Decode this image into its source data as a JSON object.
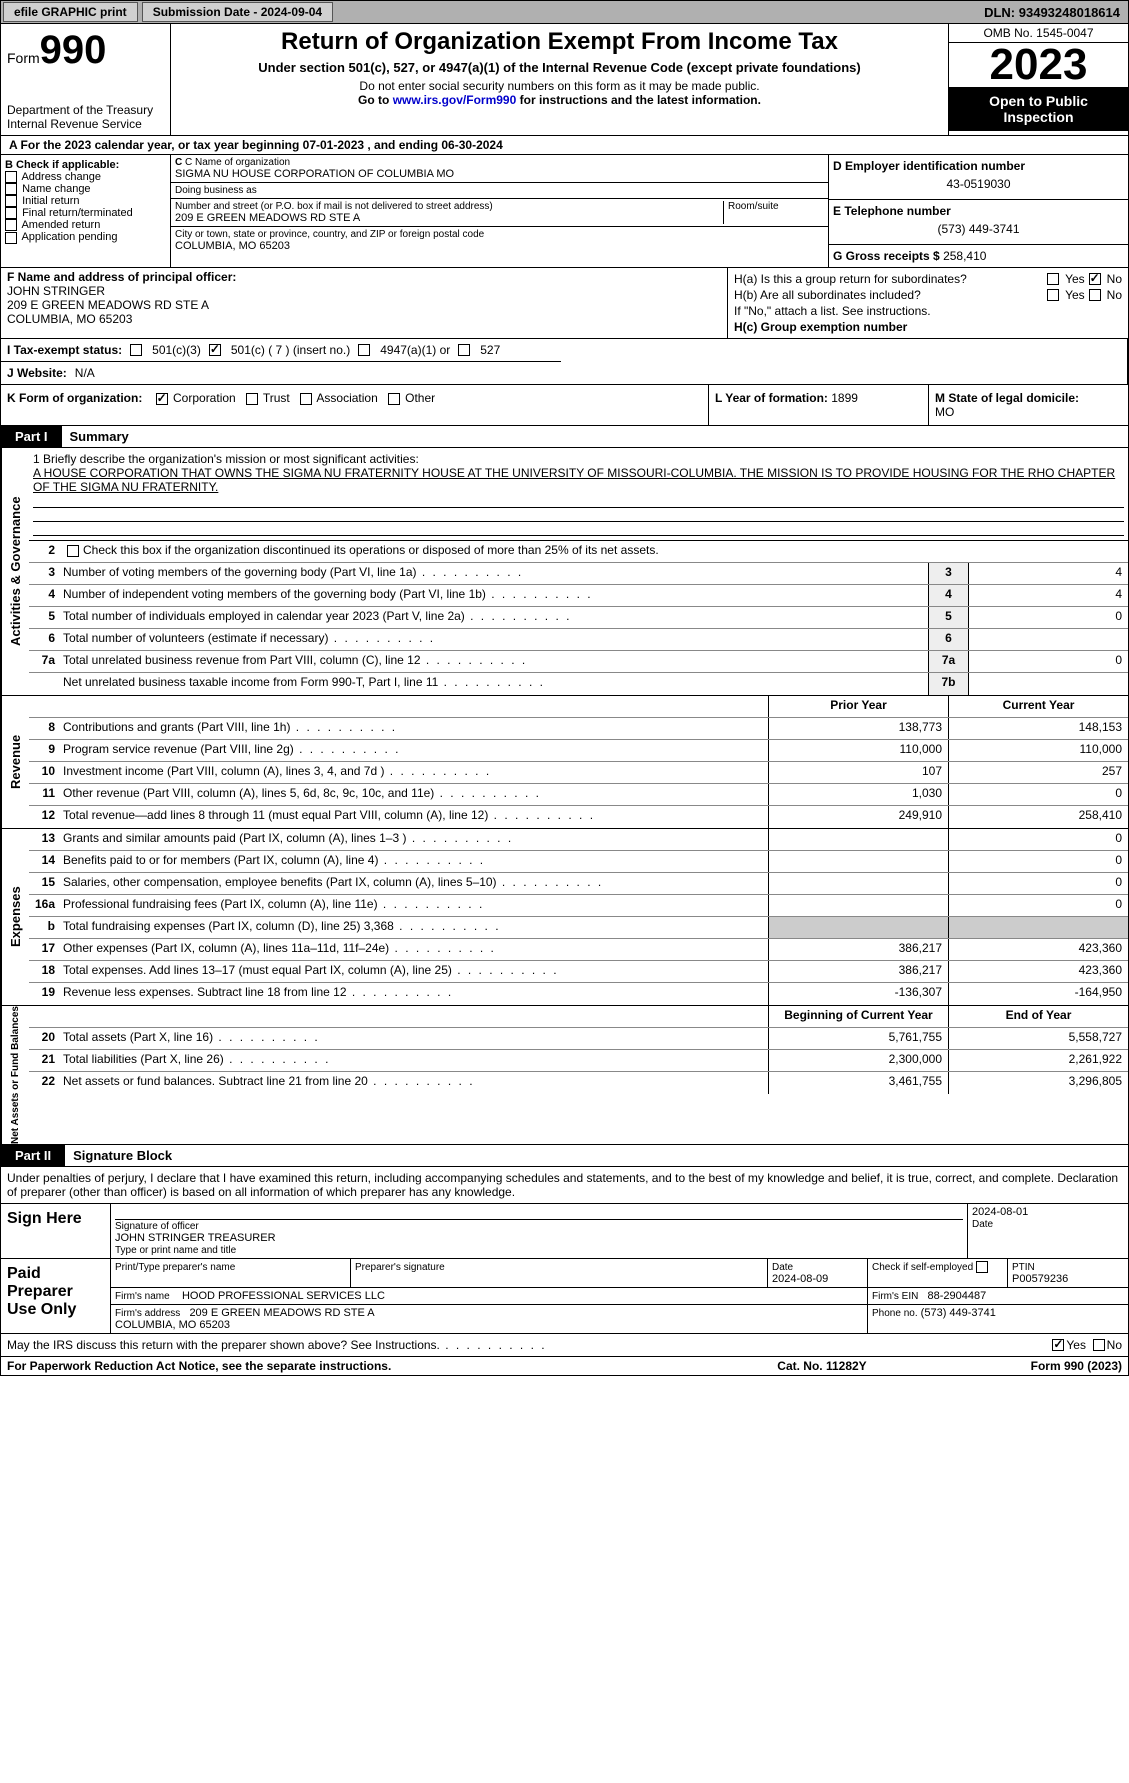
{
  "topbar": {
    "efile": "efile GRAPHIC print",
    "submission_label": "Submission Date - ",
    "submission_date": "2024-09-04",
    "dln_label": "DLN: ",
    "dln": "93493248018614"
  },
  "header": {
    "form_word": "Form",
    "form_num": "990",
    "dept": "Department of the Treasury\nInternal Revenue Service",
    "title": "Return of Organization Exempt From Income Tax",
    "subtitle": "Under section 501(c), 527, or 4947(a)(1) of the Internal Revenue Code (except private foundations)",
    "note1": "Do not enter social security numbers on this form as it may be made public.",
    "note2_pre": "Go to ",
    "note2_link": "www.irs.gov/Form990",
    "note2_post": " for instructions and the latest information.",
    "omb": "OMB No. 1545-0047",
    "year": "2023",
    "open": "Open to Public Inspection"
  },
  "section_a": {
    "text": "A   For the 2023 calendar year, or tax year beginning 07-01-2023    , and ending 06-30-2024"
  },
  "section_b": {
    "label": "B Check if applicable:",
    "opts": [
      "Address change",
      "Name change",
      "Initial return",
      "Final return/terminated",
      "Amended return",
      "Application pending"
    ]
  },
  "section_c": {
    "name_label": "C Name of organization",
    "name": "SIGMA NU HOUSE CORPORATION OF COLUMBIA MO",
    "dba_label": "Doing business as",
    "dba": "",
    "street_label": "Number and street (or P.O. box if mail is not delivered to street address)",
    "room_label": "Room/suite",
    "street": "209 E GREEN MEADOWS RD STE A",
    "city_label": "City or town, state or province, country, and ZIP or foreign postal code",
    "city": "COLUMBIA, MO  65203"
  },
  "section_d": {
    "label": "D Employer identification number",
    "value": "43-0519030"
  },
  "section_e": {
    "label": "E Telephone number",
    "value": "(573) 449-3741"
  },
  "section_g": {
    "label": "G Gross receipts $",
    "value": "258,410"
  },
  "section_f": {
    "label": "F  Name and address of principal officer:",
    "name": "JOHN STRINGER",
    "addr1": "209 E GREEN MEADOWS RD STE A",
    "addr2": "COLUMBIA, MO  65203"
  },
  "section_h": {
    "a_label": "H(a)  Is this a group return for subordinates?",
    "a_yes": "Yes",
    "a_no": "No",
    "a_checked": "no",
    "b_label": "H(b)  Are all subordinates included?",
    "b_yes": "Yes",
    "b_no": "No",
    "b_note": "If \"No,\" attach a list. See instructions.",
    "c_label": "H(c)  Group exemption number"
  },
  "section_i": {
    "label": "I    Tax-exempt status:",
    "o1": "501(c)(3)",
    "o2": "501(c) ( 7 ) (insert no.)",
    "o3": "4947(a)(1) or",
    "o4": "527",
    "checked": "o2"
  },
  "section_j": {
    "label": "J    Website:",
    "value": "N/A"
  },
  "section_k": {
    "label": "K Form of organization:",
    "opts": [
      "Corporation",
      "Trust",
      "Association",
      "Other"
    ],
    "checked": 0
  },
  "section_l": {
    "label": "L Year of formation: ",
    "value": "1899"
  },
  "section_m": {
    "label": "M State of legal domicile:",
    "value": "MO"
  },
  "part1": {
    "num": "Part I",
    "title": "Summary"
  },
  "mission": {
    "label": "1   Briefly describe the organization's mission or most significant activities:",
    "text": "A HOUSE CORPORATION THAT OWNS THE SIGMA NU FRATERNITY HOUSE AT THE UNIVERSITY OF MISSOURI-COLUMBIA. THE MISSION IS TO PROVIDE HOUSING FOR THE RHO CHAPTER OF THE SIGMA NU FRATERNITY."
  },
  "gov_lines": {
    "l2": "Check this box        if the organization discontinued its operations or disposed of more than 25% of its net assets.",
    "l3": {
      "desc": "Number of voting members of the governing body (Part VI, line 1a)",
      "box": "3",
      "val": "4"
    },
    "l4": {
      "desc": "Number of independent voting members of the governing body (Part VI, line 1b)",
      "box": "4",
      "val": "4"
    },
    "l5": {
      "desc": "Total number of individuals employed in calendar year 2023 (Part V, line 2a)",
      "box": "5",
      "val": "0"
    },
    "l6": {
      "desc": "Total number of volunteers (estimate if necessary)",
      "box": "6",
      "val": ""
    },
    "l7a": {
      "desc": "Total unrelated business revenue from Part VIII, column (C), line 12",
      "box": "7a",
      "val": "0"
    },
    "l7b": {
      "desc": "Net unrelated business taxable income from Form 990-T, Part I, line 11",
      "box": "7b",
      "val": ""
    }
  },
  "col_headers": {
    "py": "Prior Year",
    "cy": "Current Year"
  },
  "revenue": {
    "side": "Revenue",
    "lines": [
      {
        "n": "8",
        "d": "Contributions and grants (Part VIII, line 1h)",
        "py": "138,773",
        "cy": "148,153"
      },
      {
        "n": "9",
        "d": "Program service revenue (Part VIII, line 2g)",
        "py": "110,000",
        "cy": "110,000"
      },
      {
        "n": "10",
        "d": "Investment income (Part VIII, column (A), lines 3, 4, and 7d )",
        "py": "107",
        "cy": "257"
      },
      {
        "n": "11",
        "d": "Other revenue (Part VIII, column (A), lines 5, 6d, 8c, 9c, 10c, and 11e)",
        "py": "1,030",
        "cy": "0"
      },
      {
        "n": "12",
        "d": "Total revenue—add lines 8 through 11 (must equal Part VIII, column (A), line 12)",
        "py": "249,910",
        "cy": "258,410"
      }
    ]
  },
  "expenses": {
    "side": "Expenses",
    "lines": [
      {
        "n": "13",
        "d": "Grants and similar amounts paid (Part IX, column (A), lines 1–3 )",
        "py": "",
        "cy": "0"
      },
      {
        "n": "14",
        "d": "Benefits paid to or for members (Part IX, column (A), line 4)",
        "py": "",
        "cy": "0"
      },
      {
        "n": "15",
        "d": "Salaries, other compensation, employee benefits (Part IX, column (A), lines 5–10)",
        "py": "",
        "cy": "0"
      },
      {
        "n": "16a",
        "d": "Professional fundraising fees (Part IX, column (A), line 11e)",
        "py": "",
        "cy": "0"
      },
      {
        "n": "b",
        "d": "Total fundraising expenses (Part IX, column (D), line 25) 3,368",
        "py": "SHADE",
        "cy": "SHADE"
      },
      {
        "n": "17",
        "d": "Other expenses (Part IX, column (A), lines 11a–11d, 11f–24e)",
        "py": "386,217",
        "cy": "423,360"
      },
      {
        "n": "18",
        "d": "Total expenses. Add lines 13–17 (must equal Part IX, column (A), line 25)",
        "py": "386,217",
        "cy": "423,360"
      },
      {
        "n": "19",
        "d": "Revenue less expenses. Subtract line 18 from line 12",
        "py": "-136,307",
        "cy": "-164,950"
      }
    ]
  },
  "netassets": {
    "side": "Net Assets or Fund Balances",
    "header": {
      "py": "Beginning of Current Year",
      "cy": "End of Year"
    },
    "lines": [
      {
        "n": "20",
        "d": "Total assets (Part X, line 16)",
        "py": "5,761,755",
        "cy": "5,558,727"
      },
      {
        "n": "21",
        "d": "Total liabilities (Part X, line 26)",
        "py": "2,300,000",
        "cy": "2,261,922"
      },
      {
        "n": "22",
        "d": "Net assets or fund balances. Subtract line 21 from line 20",
        "py": "3,461,755",
        "cy": "3,296,805"
      }
    ]
  },
  "gov_side": "Activities & Governance",
  "part2": {
    "num": "Part II",
    "title": "Signature Block"
  },
  "sig": {
    "intro": "Under penalties of perjury, I declare that I have examined this return, including accompanying schedules and statements, and to the best of my knowledge and belief, it is true, correct, and complete. Declaration of preparer (other than officer) is based on all information of which preparer has any knowledge.",
    "sign_here": "Sign Here",
    "sig_officer": "Signature of officer",
    "officer_name": "JOHN STRINGER  TREASURER",
    "type_name": "Type or print name and title",
    "date1": "2024-08-01",
    "date_label": "Date",
    "paid": "Paid Preparer Use Only",
    "prep_name_label": "Print/Type preparer's name",
    "prep_sig_label": "Preparer's signature",
    "date2_label": "Date",
    "date2": "2024-08-09",
    "check_self": "Check         if self-employed",
    "ptin_label": "PTIN",
    "ptin": "P00579236",
    "firm_name_label": "Firm's name",
    "firm_name": "HOOD PROFESSIONAL SERVICES LLC",
    "firm_ein_label": "Firm's EIN",
    "firm_ein": "88-2904487",
    "firm_addr_label": "Firm's address",
    "firm_addr": "209 E GREEN MEADOWS RD STE A\nCOLUMBIA, MO  65203",
    "phone_label": "Phone no.",
    "phone": "(573) 449-3741",
    "discuss": "May the IRS discuss this return with the preparer shown above? See Instructions.",
    "yes": "Yes",
    "no": "No"
  },
  "footer": {
    "pra": "For Paperwork Reduction Act Notice, see the separate instructions.",
    "cat": "Cat. No. 11282Y",
    "form": "Form 990 (2023)"
  }
}
